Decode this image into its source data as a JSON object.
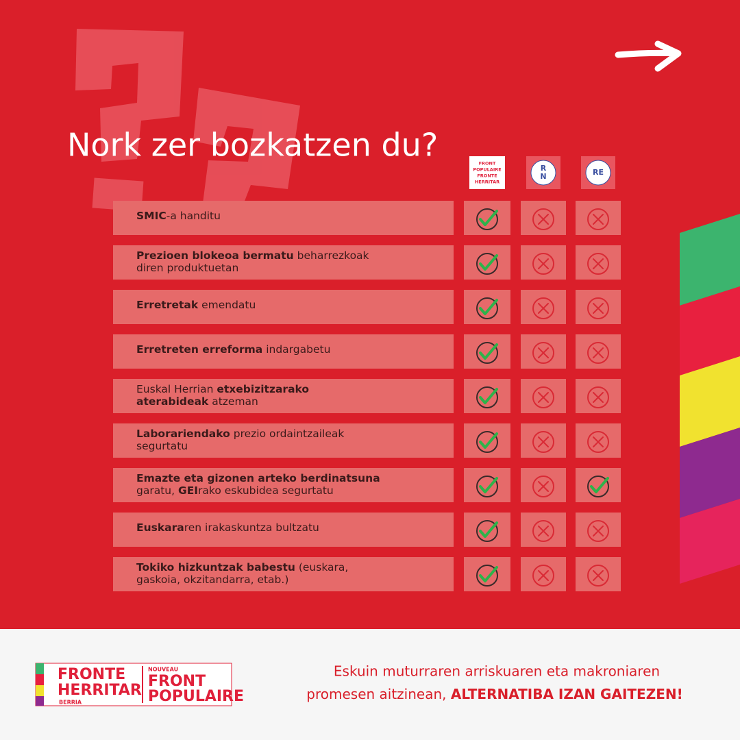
{
  "title": "Nork zer bozkatzen du?",
  "parties": [
    [
      "FRONT",
      "POPULAIRE",
      "FRONTE",
      "HERRITAR"
    ],
    [
      "R",
      "N"
    ],
    [
      "RE"
    ]
  ],
  "rows": [
    {
      "lines": [
        [
          {
            "text": "SMIC",
            "bold": true
          },
          {
            "text": "-a handitu",
            "bold": false
          }
        ]
      ],
      "votes": [
        true,
        false,
        false
      ]
    },
    {
      "lines": [
        [
          {
            "text": "Prezioen blokeoa bermatu",
            "bold": true
          },
          {
            "text": " beharrezkoak",
            "bold": false
          }
        ],
        [
          {
            "text": "diren produktuetan",
            "bold": false
          }
        ]
      ],
      "votes": [
        true,
        false,
        false
      ]
    },
    {
      "lines": [
        [
          {
            "text": "Erretretak",
            "bold": true
          },
          {
            "text": " emendatu",
            "bold": false
          }
        ]
      ],
      "votes": [
        true,
        false,
        false
      ]
    },
    {
      "lines": [
        [
          {
            "text": "Erretreten erreforma",
            "bold": true
          },
          {
            "text": " indargabetu",
            "bold": false
          }
        ]
      ],
      "votes": [
        true,
        false,
        false
      ]
    },
    {
      "lines": [
        [
          {
            "text": "Euskal Herrian ",
            "bold": false
          },
          {
            "text": "etxebizitzarako",
            "bold": true
          }
        ],
        [
          {
            "text": "aterabideak",
            "bold": true
          },
          {
            "text": " atzeman",
            "bold": false
          }
        ]
      ],
      "votes": [
        true,
        false,
        false
      ]
    },
    {
      "lines": [
        [
          {
            "text": "Laborariendako",
            "bold": true
          },
          {
            "text": " prezio ordaintzaileak",
            "bold": false
          }
        ],
        [
          {
            "text": "segurtatu",
            "bold": false
          }
        ]
      ],
      "votes": [
        true,
        false,
        false
      ]
    },
    {
      "lines": [
        [
          {
            "text": "Emazte eta gizonen arteko berdinatsuna",
            "bold": true
          }
        ],
        [
          {
            "text": "garatu, ",
            "bold": false
          },
          {
            "text": "GEI",
            "bold": true
          },
          {
            "text": "rako eskubidea segurtatu",
            "bold": false
          }
        ]
      ],
      "votes": [
        true,
        false,
        true
      ]
    },
    {
      "lines": [
        [
          {
            "text": "Euskara",
            "bold": true
          },
          {
            "text": "ren irakaskuntza bultzatu",
            "bold": false
          }
        ]
      ],
      "votes": [
        true,
        false,
        false
      ]
    },
    {
      "lines": [
        [
          {
            "text": "Tokiko hizkuntzak babestu",
            "bold": true
          },
          {
            "text": " (euskara,",
            "bold": false
          }
        ],
        [
          {
            "text": "gaskoia, okzitandarra, etab.)",
            "bold": false
          }
        ]
      ],
      "votes": [
        true,
        false,
        false
      ]
    }
  ],
  "footer": {
    "logo": {
      "left": [
        "FRONTE",
        "HERRITAR",
        "BERRIA"
      ],
      "right": [
        "NOUVEAU",
        "FRONT",
        "POPULAIRE"
      ]
    },
    "tagline": [
      "Eskuin muturraren arriskuaren eta makroniaren",
      "promesen aitzinean, "
    ],
    "slogan": "ALTERNATIBA IZAN GAITEZEN!"
  }
}
